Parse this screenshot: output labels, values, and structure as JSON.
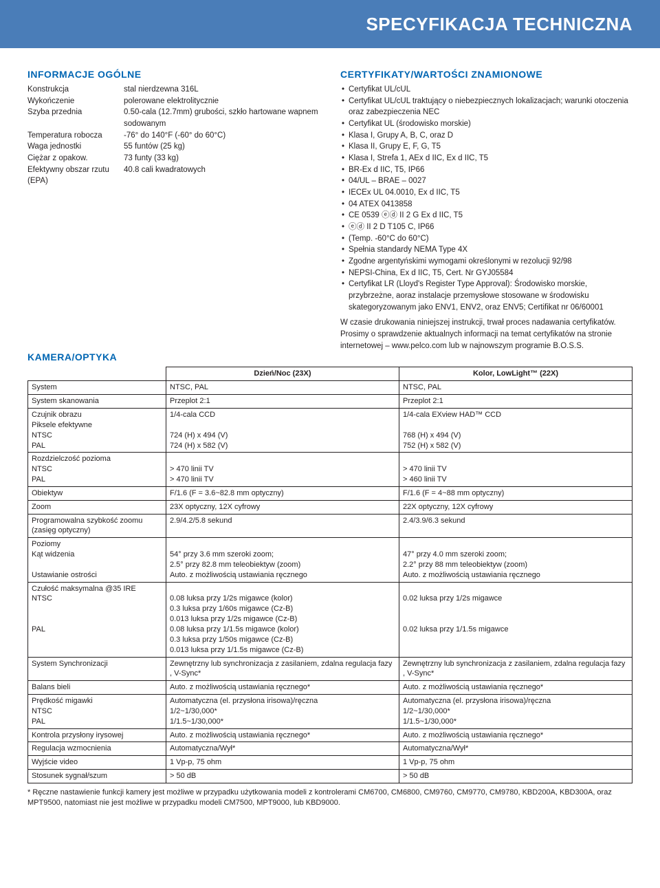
{
  "header": {
    "title": "SPECYFIKACJA TECHNICZNA"
  },
  "general": {
    "heading": "INFORMACJE OGÓLNE",
    "rows": [
      {
        "k": "Konstrukcja",
        "v": "stal nierdzewna 316L"
      },
      {
        "k": "Wykończenie",
        "v": "polerowane elektrolitycznie"
      },
      {
        "k": "Szyba przednia",
        "v": "0.50-cala (12.7mm) grubości, szkło hartowane wapnem sodowanym"
      },
      {
        "k": "Temperatura robocza",
        "v": "-76° do 140°F (-60° do 60°C)"
      },
      {
        "k": "Waga jednostki",
        "v": "55 funtów (25 kg)"
      },
      {
        "k": "Ciężar z opakow.",
        "v": "73 funty (33 kg)"
      },
      {
        "k": "Efektywny obszar rzutu (EPA)",
        "v": "40.8 cali kwadratowych"
      }
    ]
  },
  "certs": {
    "heading": "CERTYFIKATY/WARTOŚCI ZNAMIONOWE",
    "items": [
      "Certyfikat UL/cUL",
      "Certyfikat UL/cUL traktujący o niebezpiecznych lokalizacjach; warunki otoczenia oraz zabezpieczenia NEC",
      "Certyfikat UL (środowisko morskie)",
      "Klasa I, Grupy A, B, C, oraz D",
      "Klasa II, Grupy E, F, G, T5",
      "Klasa I, Strefa 1, AEx d IIC, Ex d IIC, T5",
      "BR-Ex d IIC, T5, IP66",
      "04/UL – BRAE – 0027",
      "IECEx UL 04.0010, Ex d IIC, T5",
      "04 ATEX 0413858",
      "CE 0539 ⓔⓓ II 2 G Ex d IIC, T5",
      "ⓔⓓ II 2 D T105 C, IP66",
      "(Temp. -60°C do 60°C)",
      "Spełnia standardy NEMA Type 4X",
      "Zgodne argentyńskimi wymogami określonymi w rezolucji 92/98",
      "NEPSI-China, Ex d IIC, T5, Cert. Nr GYJ05584",
      "Certyfikat LR (Lloyd's Register Type Approval): Środowisko morskie, przybrzeżne, aoraz instalacje przemysłowe stosowane w środowisku skategoryzowanym jako ENV1, ENV2, oraz ENV5; Certifikat nr 06/60001"
    ],
    "note": "W czasie drukowania niniejszej instrukcji, trwał proces nadawania certyfikatów. Prosimy o sprawdzenie aktualnych informacji na temat certyfikatów na stronie internetowej – www.pelco.com lub w najnowszym programie B.O.S.S."
  },
  "camera": {
    "heading": "KAMERA/OPTYKA",
    "columns": [
      "",
      "Dzień/Noc (23X)",
      "Kolor, LowLight™ (22X)"
    ],
    "rows": [
      {
        "label": "System",
        "c1": "NTSC, PAL",
        "c2": "NTSC, PAL"
      },
      {
        "label": "System skanowania",
        "c1": "Przeplot 2:1",
        "c2": "Przeplot 2:1"
      },
      {
        "label": "Czujnik obrazu\nPiksele efektywne\nNTSC\nPAL",
        "c1": "1/4-cala CCD\n\n724 (H) x 494 (V)\n724 (H) x 582 (V)",
        "c2": "1/4-cala EXview HAD™ CCD\n\n768 (H) x 494 (V)\n752 (H) x 582 (V)"
      },
      {
        "label": "Rozdzielczość pozioma\nNTSC\nPAL",
        "c1": "\n> 470 linii TV\n> 470 linii TV",
        "c2": "\n> 470 linii TV\n> 460 linii TV"
      },
      {
        "label": "Obiektyw",
        "c1": "F/1.6 (F = 3.6~82.8 mm optyczny)",
        "c2": "F/1.6 (F = 4~88 mm optyczny)"
      },
      {
        "label": "Zoom",
        "c1": "23X optyczny, 12X cyfrowy",
        "c2": "22X optyczny, 12X cyfrowy"
      },
      {
        "label": "Programowalna szybkość zoomu (zasięg optyczny)",
        "c1": "2.9/4.2/5.8 sekund",
        "c2": "2.4/3.9/6.3 sekund"
      },
      {
        "label": "Poziomy\nKąt widzenia\n\nUstawianie ostrości",
        "c1": "\n54° przy 3.6 mm szeroki zoom;\n2.5° przy 82.8 mm teleobiektyw (zoom)\nAuto. z możliwością ustawiania ręcznego",
        "c2": "\n47° przy 4.0 mm szeroki zoom;\n2.2° przy 88 mm teleobiektyw (zoom)\nAuto. z możliwością ustawiania ręcznego"
      },
      {
        "label": "Czułość maksymalna @35 IRE\nNTSC\n\n\nPAL",
        "c1": "\n0.08 luksa przy 1/2s migawce (kolor)\n0.3 luksa przy 1/60s migawce (Cz-B)\n0.013 luksa przy 1/2s migawce (Cz-B)\n0.08 luksa przy 1/1.5s migawce (kolor)\n0.3 luksa przy 1/50s migawce (Cz-B)\n0.013 luksa przy 1/1.5s migawce (Cz-B)",
        "c2": "\n0.02 luksa przy 1/2s migawce\n\n\n0.02 luksa przy 1/1.5s migawce"
      },
      {
        "label": "System Synchronizacji",
        "c1": "Zewnętrzny lub synchronizacja z zasilaniem, zdalna regulacja fazy , V-Sync*",
        "c2": "Zewnętrzny lub synchronizacja z zasilaniem, zdalna regulacja fazy , V-Sync*"
      },
      {
        "label": "Balans bieli",
        "c1": "Auto. z możliwością ustawiania ręcznego*",
        "c2": "Auto. z możliwością ustawiania ręcznego*"
      },
      {
        "label": "Prędkość migawki\nNTSC\nPAL",
        "c1": "Automatyczna (el. przysłona irisowa)/ręczna\n1/2~1/30,000*\n1/1.5~1/30,000*",
        "c2": "Automatyczna (el. przysłona irisowa)/ręczna\n1/2~1/30,000*\n1/1.5~1/30,000*"
      },
      {
        "label": "Kontrola przysłony irysowej",
        "c1": "Auto. z możliwością ustawiania ręcznego*",
        "c2": "Auto. z możliwością ustawiania ręcznego*"
      },
      {
        "label": "Regulacja wzmocnienia",
        "c1": "Automatyczna/Wył*",
        "c2": "Automatyczna/Wył*"
      },
      {
        "label": "Wyjście video",
        "c1": "1 Vp-p, 75 ohm",
        "c2": "1 Vp-p, 75 ohm"
      },
      {
        "label": "Stosunek sygnał/szum",
        "c1": "> 50 dB",
        "c2": "> 50 dB"
      }
    ],
    "footnote": "* Ręczne nastawienie funkcji kamery jest możliwe w przypadku użytkowania modeli z kontrolerami CM6700, CM6800, CM9760, CM9770, CM9780, KBD200A, KBD300A, oraz MPT9500, natomiast nie jest możliwe w przypadku modeli CM7500, MPT9000, lub KBD9000."
  }
}
